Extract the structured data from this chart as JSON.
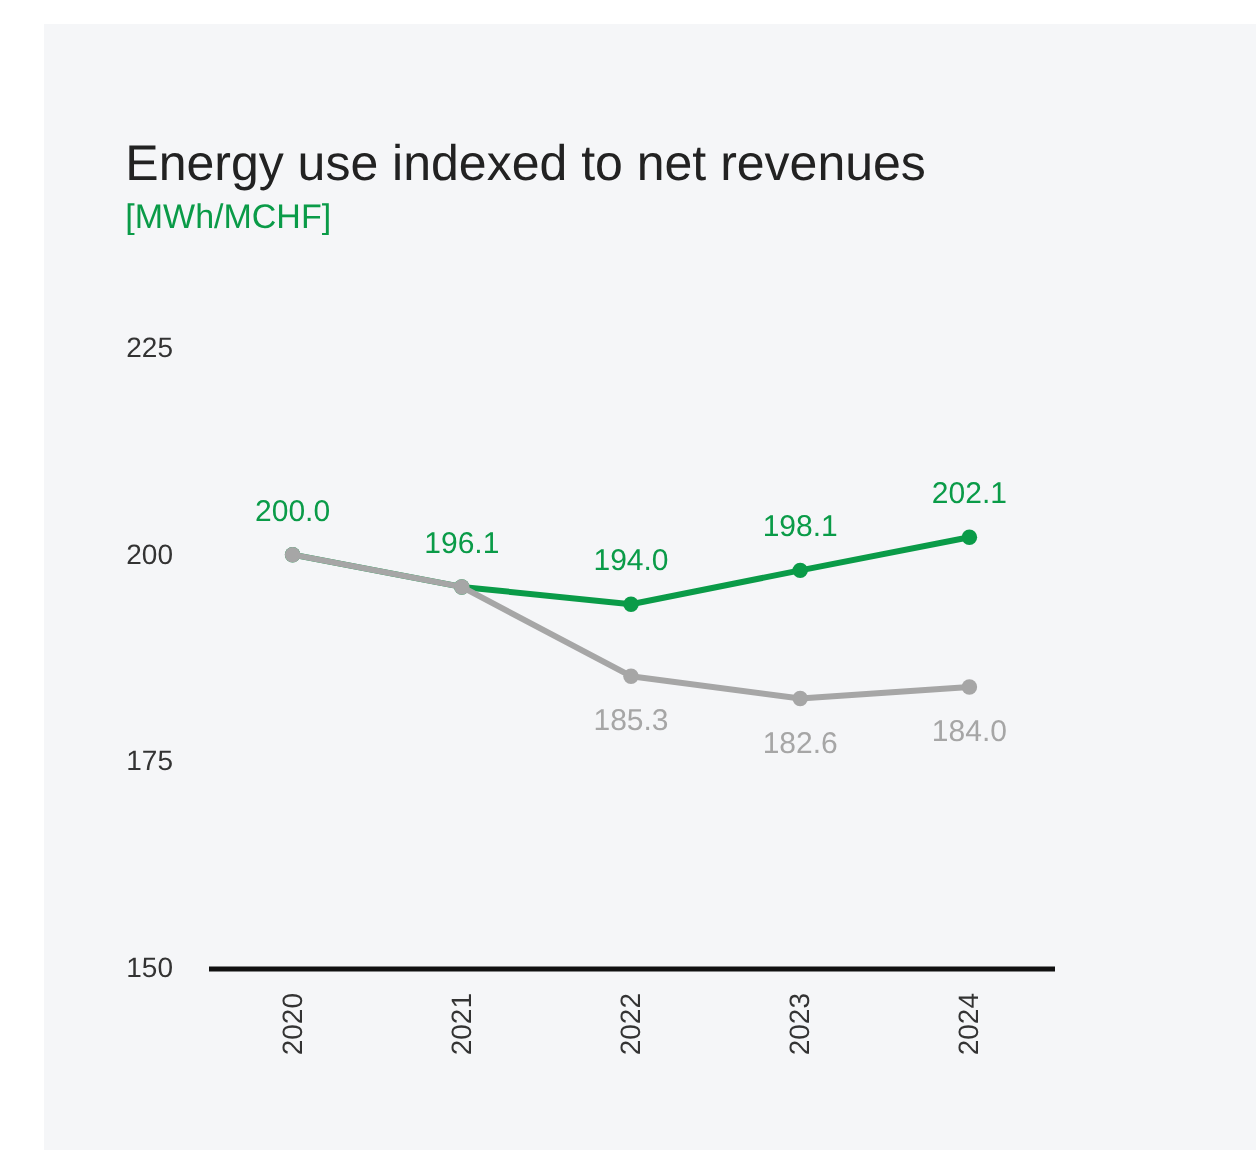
{
  "chart_data": {
    "type": "line",
    "title": "Energy use indexed to net revenues",
    "subtitle": "[MWh/MCHF]",
    "categories": [
      "2020",
      "2021",
      "2022",
      "2023",
      "2024"
    ],
    "series": [
      {
        "color": "#0a9b48",
        "values": [
          200.0,
          196.1,
          194.0,
          198.1,
          202.1
        ],
        "value_labels": [
          "200.0",
          "196.1",
          "194.0",
          "198.1",
          "202.1"
        ]
      },
      {
        "color": "#a6a6a6",
        "values": [
          200.0,
          196.1,
          185.3,
          182.6,
          184.0
        ],
        "value_labels": [
          null,
          null,
          "185.3",
          "182.6",
          "184.0"
        ]
      }
    ],
    "ylim": [
      150,
      225
    ],
    "yticks": [
      150,
      175,
      200,
      225
    ],
    "grid": false,
    "legend": false,
    "marker": "circle",
    "line_style": "solid"
  }
}
